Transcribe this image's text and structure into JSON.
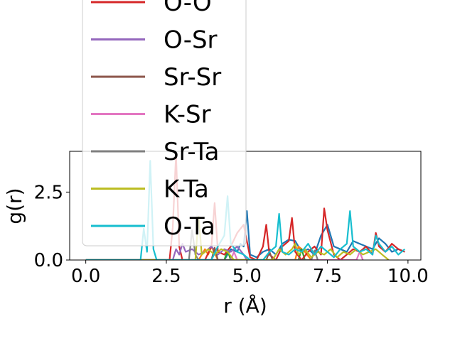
{
  "chart_data": {
    "type": "line",
    "title": "",
    "xlabel": "r (Å)",
    "ylabel": "g(r)",
    "xlim": [
      -0.5,
      10.4
    ],
    "ylim": [
      0,
      4.0
    ],
    "xticks": [
      0.0,
      2.5,
      5.0,
      7.5,
      10.0
    ],
    "xtick_labels": [
      "0.0",
      "2.5",
      "5.0",
      "7.5",
      "10.0"
    ],
    "yticks": [
      0.0,
      2.5
    ],
    "ytick_labels": [
      "0.0",
      "2.5"
    ],
    "grid": false,
    "legend_position": "upper-left",
    "series": [
      {
        "name": "",
        "color": "#1f77b4",
        "x": [
          0,
          4.3,
          4.5,
          4.7,
          4.8,
          4.9,
          5.0,
          5.1,
          5.3,
          5.5,
          5.7,
          5.9,
          6.1,
          6.3,
          6.5,
          6.7,
          6.9,
          7.1,
          7.3,
          7.5,
          7.7,
          7.9,
          8.1,
          8.3,
          8.5,
          8.7,
          8.9,
          9.1,
          9.3,
          9.5,
          9.7,
          9.9
        ],
        "y": [
          0,
          0,
          0.4,
          0.3,
          0.6,
          0.5,
          1.8,
          0.2,
          0.1,
          0.3,
          0.4,
          0.2,
          0.6,
          0.75,
          0.7,
          0.3,
          0.4,
          0.2,
          0.9,
          1.3,
          0.5,
          0.4,
          0.3,
          0.7,
          0.6,
          0.5,
          0.4,
          0.8,
          0.6,
          0.3,
          0.4,
          0.3
        ]
      },
      {
        "name": "",
        "color": "#ff7f0e",
        "x": [
          0,
          3.5,
          3.7,
          3.8,
          3.9,
          4.1,
          6.5,
          6.6,
          6.8,
          7.0
        ],
        "y": [
          0,
          0,
          0.4,
          0.2,
          0.5,
          0,
          0,
          0.5,
          0.3,
          0
        ]
      },
      {
        "name": "",
        "color": "#2ca02c",
        "x": [
          0,
          4.3,
          4.4,
          4.5,
          6.6,
          6.7,
          6.8
        ],
        "y": [
          0,
          0,
          0.35,
          0,
          0,
          0.4,
          0
        ]
      },
      {
        "name": "O-O",
        "color": "#d62728",
        "x": [
          0,
          2.6,
          2.7,
          2.8,
          2.9,
          3.0,
          3.7,
          3.9,
          4.0,
          4.1,
          4.3,
          4.5,
          4.7,
          4.9,
          5.1,
          5.3,
          5.5,
          5.6,
          5.7,
          5.9,
          6.1,
          6.3,
          6.4,
          6.5,
          6.7,
          6.9,
          7.1,
          7.3,
          7.4,
          7.5,
          7.7,
          7.9,
          8.1,
          8.3,
          8.5,
          8.7,
          8.9,
          9.0,
          9.1,
          9.3,
          9.5,
          9.7,
          9.9
        ],
        "y": [
          0,
          0,
          1.2,
          3.9,
          0.5,
          0,
          0,
          0.5,
          2.1,
          0.3,
          0.2,
          0.5,
          1.0,
          1.3,
          0.1,
          0,
          0.5,
          1.3,
          0.2,
          0,
          0.5,
          0.7,
          1.55,
          0.3,
          0,
          0.3,
          0.5,
          0.2,
          1.9,
          1.1,
          0.2,
          0,
          0.2,
          0.4,
          0.3,
          0.5,
          0.2,
          1.0,
          0.5,
          0.3,
          0.6,
          0.4,
          0.3
        ]
      },
      {
        "name": "O-Sr",
        "color": "#9467bd",
        "x": [
          0,
          2.7,
          2.8,
          2.9,
          3.0,
          3.1,
          3.3,
          3.5,
          3.7,
          3.9,
          4.1,
          4.3,
          4.5,
          4.7,
          4.9,
          5.0
        ],
        "y": [
          0,
          0,
          0.4,
          0.2,
          0.6,
          0.3,
          0.4,
          0.2,
          0.3,
          0.5,
          0.2,
          0.4,
          0.3,
          0.5,
          0.2,
          0
        ]
      },
      {
        "name": "Sr-Sr",
        "color": "#8c564b",
        "x": [
          0,
          3.9,
          4.0,
          4.1,
          5.6,
          5.7,
          5.8
        ],
        "y": [
          0,
          0,
          0.45,
          0,
          0,
          0.3,
          0
        ]
      },
      {
        "name": "K-Sr",
        "color": "#e377c2",
        "x": [
          0,
          4.5,
          4.6,
          4.7,
          8.4,
          8.5,
          8.6
        ],
        "y": [
          0,
          0,
          0.3,
          0,
          0,
          0.3,
          0
        ]
      },
      {
        "name": "Sr-Ta",
        "color": "#7f7f7f",
        "x": [
          0,
          3.2,
          3.3,
          3.4,
          3.5,
          7.0,
          7.1,
          7.2
        ],
        "y": [
          0,
          0,
          1.1,
          0.2,
          0,
          0,
          0.35,
          0
        ]
      },
      {
        "name": "K-Ta",
        "color": "#bcbd22",
        "x": [
          0,
          3.4,
          3.5,
          3.6,
          3.8,
          4.0,
          4.2,
          4.4,
          4.6,
          5.8,
          6.0,
          6.2,
          6.4,
          6.5,
          6.6,
          6.8,
          7.0,
          7.2,
          7.4,
          7.6,
          7.8,
          8.0,
          8.2,
          8.4,
          8.6,
          8.8,
          9.0,
          9.2,
          9.4
        ],
        "y": [
          0,
          0,
          1.6,
          0.2,
          0.4,
          0.2,
          0.4,
          0.3,
          0,
          0,
          0.4,
          0.2,
          0.4,
          0.6,
          0.2,
          0.4,
          0.1,
          0.3,
          0.2,
          0.4,
          0.1,
          0.3,
          0.2,
          0.4,
          0.2,
          0.3,
          0.4,
          0.2,
          0
        ]
      },
      {
        "name": "O-Ta",
        "color": "#17becf",
        "x": [
          0,
          1.7,
          1.8,
          1.9,
          2.0,
          2.1,
          2.2,
          3.9,
          4.1,
          4.3,
          4.4,
          4.5,
          4.7,
          4.9,
          5.1,
          5.5,
          5.7,
          5.9,
          6.0,
          6.1,
          6.3,
          6.5,
          6.7,
          6.9,
          7.1,
          7.3,
          7.5,
          7.7,
          7.9,
          8.1,
          8.2,
          8.3,
          8.5,
          8.7,
          8.9,
          9.0,
          9.1,
          9.3,
          9.5,
          9.7,
          9.9
        ],
        "y": [
          0,
          0,
          1.15,
          0.3,
          3.65,
          0.4,
          0,
          0,
          0.5,
          0.9,
          2.35,
          0.6,
          0.3,
          0.2,
          0,
          0,
          0.3,
          0.5,
          1.7,
          0.3,
          0.2,
          0.4,
          0.3,
          0.6,
          0.2,
          0.5,
          0.3,
          0.1,
          0.4,
          0.6,
          1.8,
          0.5,
          0.3,
          0.4,
          0.2,
          0.9,
          0.6,
          0.3,
          0.5,
          0.2,
          0.4
        ]
      }
    ]
  }
}
